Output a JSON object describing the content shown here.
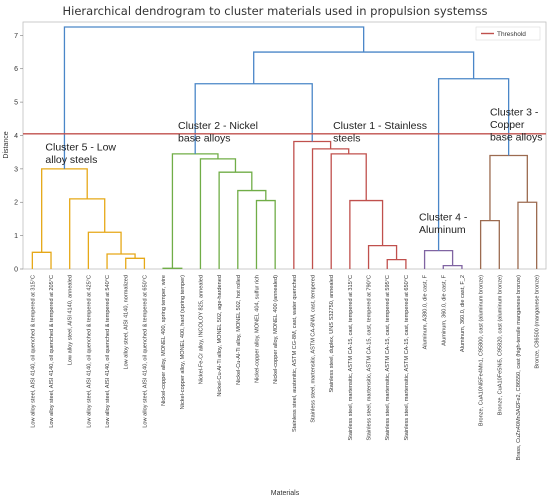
{
  "chart_data": {
    "type": "dendrogram",
    "title": "Hierarchical dendrogram to cluster materials used in propulsion systemss",
    "xlabel": "Materials",
    "ylabel": "Distance",
    "ylim": [
      0,
      7.4
    ],
    "yticks": [
      0,
      1,
      2,
      3,
      4,
      5,
      6,
      7
    ],
    "threshold": {
      "name": "Threshold",
      "value": 4.05,
      "color": "#c0504d"
    },
    "legend_position": "top-right",
    "leaves": [
      "Low alloy steel, AISI 4140, oil quenched & tempered at 315°C",
      "Low alloy steel, AISI 4140, oil quenched & tempered at 205°C",
      "Low alloy steel, AISI 4140, annealed",
      "Low alloy steel, AISI 4140, oil quenched & tempered at 425°C",
      "Low alloy steel, AISI 4140, oil quenched & tempered at 540°C",
      "Low alloy steel, AISI 4140, normalized",
      "Low alloy steel, AISI 4140, oil quenched & tempered at 650°C",
      "Nickel-copper alloy, MONEL 400, spring temper, wire",
      "Nickel-copper alloy, MONEL 400, hard (spring temper)",
      "Nickel-Fe-Cr alloy, INCOLOY 825, annealed",
      "Nickel-Cu-Al-Ti alloy, MONEL 502, age-hardened",
      "Nickel-Cu-Al-Ti alloy, MONEL 502, hot rolled",
      "Nickel-copper alloy, MONEL 404, sulfur rich",
      "Nickel-copper alloy, MONEL 400 (annealed)",
      "Stainless steel, austenitic, ASTM CG-8M, cast, water quenched",
      "Stainless steel, martensitic, ASTM CA-6NM, cast, tempered",
      "Stainless steel, duplex, UNS S32750, annealed",
      "Stainless steel, martensitic, ASTM CA-15, cast, tempered at 315°C",
      "Stainless steel, martensitic, ASTM CA-15, cast, tempered at 790°C",
      "Stainless steel, martensitic, ASTM CA-15, cast, tempered at 595°C",
      "Stainless steel, martensitic, ASTM CA-15, cast, tempered at 650°C",
      "Aluminum, A380.0, die cast, F",
      "Aluminum, 360.0, die cast, F",
      "Aluminum, 360.0, die cast, F_2",
      "Bronze, CuA10Ni5Fe4Mn1, C95800, cast (aluminum bronze)",
      "Bronze, CuA10Fe5Ni5, C95820, cast (aluminum bronze)",
      "Brass, CuZn40Mn3Al2Fe2, C86550, cast (high-tensile manganese bronze)",
      "Bronze, C86500 (manganese bronze)"
    ],
    "merges": [
      {
        "a": [
          0
        ],
        "b": [
          1
        ],
        "h": 0.5,
        "color": "#e6a817"
      },
      {
        "a": [
          5
        ],
        "b": [
          6
        ],
        "h": 0.32,
        "color": "#e6a817"
      },
      {
        "a": [
          4
        ],
        "b": [
          5,
          6
        ],
        "h": 0.45,
        "color": "#e6a817"
      },
      {
        "a": [
          3
        ],
        "b": [
          4,
          5,
          6
        ],
        "h": 1.1,
        "color": "#e6a817"
      },
      {
        "a": [
          2
        ],
        "b": [
          3,
          4,
          5,
          6
        ],
        "h": 2.1,
        "color": "#e6a817"
      },
      {
        "a": [
          0,
          1
        ],
        "b": [
          2,
          3,
          4,
          5,
          6
        ],
        "h": 3.0,
        "color": "#e6a817"
      },
      {
        "a": [
          12
        ],
        "b": [
          13
        ],
        "h": 2.05,
        "color": "#70ad47"
      },
      {
        "a": [
          11
        ],
        "b": [
          12,
          13
        ],
        "h": 2.35,
        "color": "#70ad47"
      },
      {
        "a": [
          10
        ],
        "b": [
          11,
          12,
          13
        ],
        "h": 2.9,
        "color": "#70ad47"
      },
      {
        "a": [
          9
        ],
        "b": [
          10,
          11,
          12,
          13
        ],
        "h": 3.3,
        "color": "#70ad47"
      },
      {
        "a": [
          7
        ],
        "b": [
          8
        ],
        "h": 0.02,
        "color": "#70ad47"
      },
      {
        "a": [
          7,
          8
        ],
        "b": [
          9,
          10,
          11,
          12,
          13
        ],
        "h": 3.45,
        "color": "#70ad47"
      },
      {
        "a": [
          19
        ],
        "b": [
          20
        ],
        "h": 0.28,
        "color": "#c0504d"
      },
      {
        "a": [
          18
        ],
        "b": [
          19,
          20
        ],
        "h": 0.7,
        "color": "#c0504d"
      },
      {
        "a": [
          17
        ],
        "b": [
          18,
          19,
          20
        ],
        "h": 2.05,
        "color": "#c0504d"
      },
      {
        "a": [
          16
        ],
        "b": [
          17,
          18,
          19,
          20
        ],
        "h": 3.45,
        "color": "#c0504d"
      },
      {
        "a": [
          15
        ],
        "b": [
          16,
          17,
          18,
          19,
          20
        ],
        "h": 3.6,
        "color": "#c0504d"
      },
      {
        "a": [
          14
        ],
        "b": [
          15,
          16,
          17,
          18,
          19,
          20
        ],
        "h": 3.82,
        "color": "#c0504d"
      },
      {
        "a": [
          22
        ],
        "b": [
          23
        ],
        "h": 0.1,
        "color": "#8064a2"
      },
      {
        "a": [
          21
        ],
        "b": [
          22,
          23
        ],
        "h": 0.55,
        "color": "#8064a2"
      },
      {
        "a": [
          24
        ],
        "b": [
          25
        ],
        "h": 1.45,
        "color": "#9c6b50"
      },
      {
        "a": [
          26
        ],
        "b": [
          27
        ],
        "h": 2.0,
        "color": "#9c6b50"
      },
      {
        "a": [
          24,
          25
        ],
        "b": [
          26,
          27
        ],
        "h": 3.4,
        "color": "#9c6b50"
      },
      {
        "a": [
          7,
          8,
          9,
          10,
          11,
          12,
          13
        ],
        "b": [
          14,
          15,
          16,
          17,
          18,
          19,
          20
        ],
        "h": 5.55,
        "color": "#4a86c8"
      },
      {
        "a": [
          21,
          22,
          23
        ],
        "b": [
          24,
          25,
          26,
          27
        ],
        "h": 5.7,
        "color": "#4a86c8"
      },
      {
        "a": [
          7,
          8,
          9,
          10,
          11,
          12,
          13,
          14,
          15,
          16,
          17,
          18,
          19,
          20
        ],
        "b": [
          21,
          22,
          23,
          24,
          25,
          26,
          27
        ],
        "h": 6.5,
        "color": "#4a86c8"
      },
      {
        "a": [
          0,
          1,
          2,
          3,
          4,
          5,
          6
        ],
        "b": [
          7,
          8,
          9,
          10,
          11,
          12,
          13,
          14,
          15,
          16,
          17,
          18,
          19,
          20,
          21,
          22,
          23,
          24,
          25,
          26,
          27
        ],
        "h": 7.25,
        "color": "#4a86c8"
      }
    ],
    "annotations": [
      {
        "lines": [
          "Cluster 5 - Low",
          "alloy steels"
        ],
        "leaf": 0.7,
        "y": 3.55
      },
      {
        "lines": [
          "Cluster 2 - Nickel",
          "base alloys"
        ],
        "leaf": 7.8,
        "y": 4.2
      },
      {
        "lines": [
          "Cluster 1 - Stainless",
          "steels"
        ],
        "leaf": 16.1,
        "y": 4.2
      },
      {
        "lines": [
          "Cluster 4 -",
          "Aluminum"
        ],
        "leaf": 20.7,
        "y": 1.45
      },
      {
        "lines": [
          "Cluster 3 -",
          "Copper",
          "base alloys"
        ],
        "leaf": 24.5,
        "y": 4.6
      }
    ]
  }
}
